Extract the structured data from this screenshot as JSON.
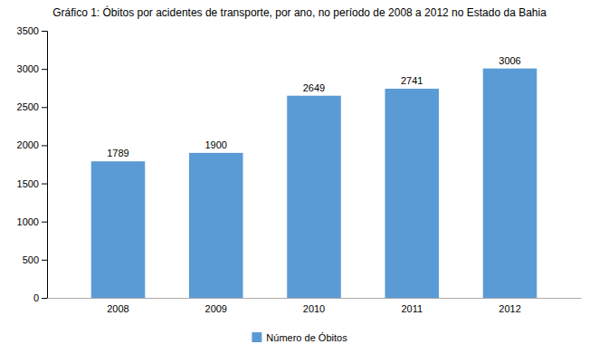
{
  "chart_data": {
    "type": "bar",
    "title": "Gráfico 1: Óbitos por acidentes de transporte, por ano, no período de 2008 a 2012 no Estado da Bahia",
    "categories": [
      "2008",
      "2009",
      "2010",
      "2011",
      "2012"
    ],
    "series": [
      {
        "name": "Número de Óbitos",
        "color": "#5B9BD5",
        "values": [
          1789,
          1900,
          2649,
          2741,
          3006
        ]
      }
    ],
    "ylim": [
      0,
      3500
    ],
    "yticks": [
      0,
      500,
      1000,
      1500,
      2000,
      2500,
      3000,
      3500
    ],
    "grid": false,
    "legend": "bottom",
    "data_labels": true
  }
}
